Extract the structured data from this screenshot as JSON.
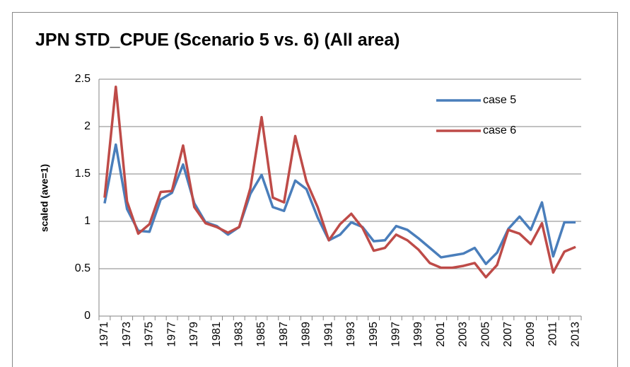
{
  "chart_data": {
    "type": "line",
    "title": "JPN STD_CPUE (Scenario 5 vs. 6) (All area)",
    "y_label": "scaled (ave=1)",
    "categories": [
      "1971",
      null,
      "1973",
      null,
      "1975",
      null,
      "1977",
      null,
      "1979",
      null,
      "1981",
      null,
      "1983",
      null,
      "1985",
      null,
      "1987",
      null,
      "1989",
      null,
      "1991",
      null,
      "1993",
      null,
      "1995",
      null,
      "1997",
      null,
      "1999",
      null,
      "2001",
      null,
      "2003",
      null,
      "2005",
      null,
      "2007",
      null,
      "2009",
      null,
      "2011",
      null,
      "2013"
    ],
    "series": [
      {
        "name": "case 5",
        "color": "#4a7ebb",
        "values": [
          1.19,
          1.81,
          1.13,
          0.9,
          0.89,
          1.23,
          1.3,
          1.6,
          1.19,
          0.99,
          0.95,
          0.86,
          0.94,
          1.29,
          1.49,
          1.15,
          1.11,
          1.43,
          1.34,
          1.04,
          0.8,
          0.86,
          0.99,
          0.94,
          0.79,
          0.8,
          0.95,
          0.91,
          0.82,
          0.72,
          0.62,
          0.64,
          0.66,
          0.72,
          0.55,
          0.67,
          0.92,
          1.05,
          0.91,
          1.2,
          0.63,
          0.99,
          0.99
        ]
      },
      {
        "name": "case 6",
        "color": "#be4b48",
        "values": [
          1.25,
          2.42,
          1.21,
          0.87,
          0.97,
          1.31,
          1.32,
          1.8,
          1.15,
          0.98,
          0.94,
          0.88,
          0.94,
          1.35,
          2.1,
          1.25,
          1.2,
          1.9,
          1.42,
          1.15,
          0.8,
          0.97,
          1.08,
          0.93,
          0.69,
          0.72,
          0.86,
          0.8,
          0.7,
          0.56,
          0.51,
          0.51,
          0.53,
          0.56,
          0.41,
          0.54,
          0.91,
          0.87,
          0.76,
          0.98,
          0.46,
          0.68,
          0.73
        ]
      }
    ],
    "ylim": [
      0,
      2.5
    ],
    "yticks": [
      0,
      0.5,
      1,
      1.5,
      2,
      2.5
    ],
    "grid": true,
    "legend": "upper-right"
  }
}
